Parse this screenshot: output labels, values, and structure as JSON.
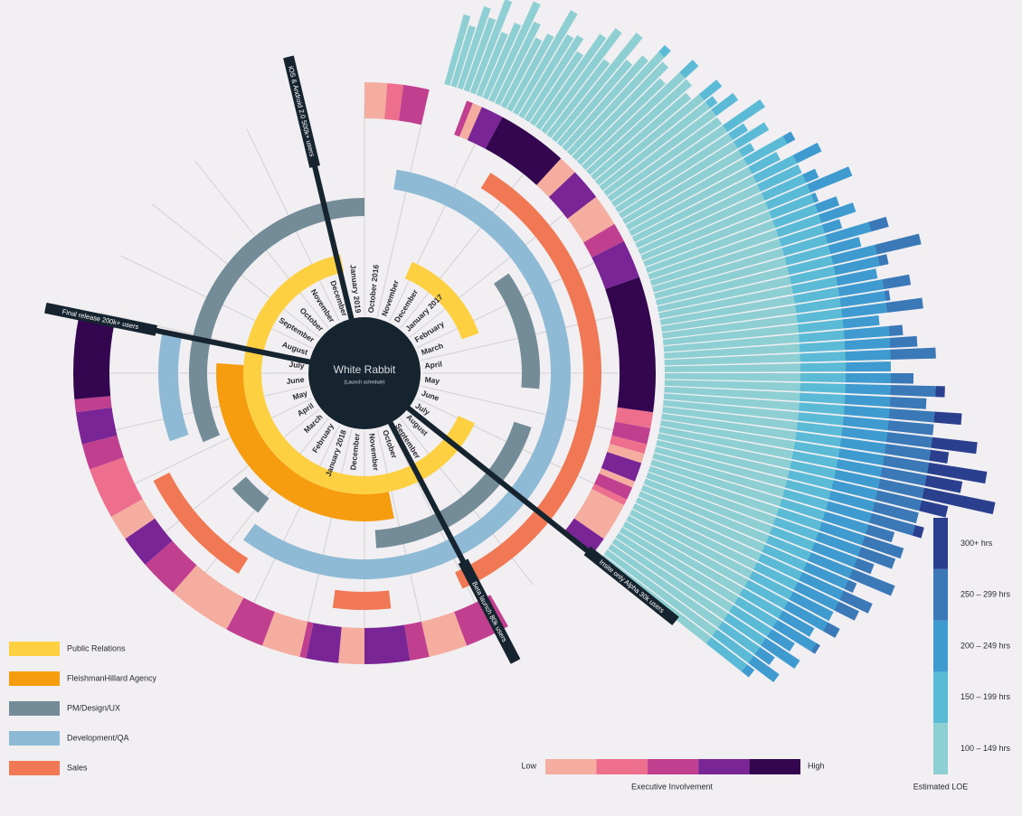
{
  "chart_data": {
    "type": "radial-timeline",
    "title": "White Rabbit",
    "subtitle": "(Launch schedule)",
    "months": [
      "October 2016",
      "November",
      "December",
      "January 2017",
      "February",
      "March",
      "April",
      "May",
      "June",
      "July",
      "August",
      "September",
      "October",
      "November",
      "December",
      "January 2018",
      "February",
      "March",
      "April",
      "May",
      "June",
      "July",
      "August",
      "September",
      "October",
      "November",
      "December",
      "January 2019"
    ],
    "tracks": [
      {
        "name": "Public Relations",
        "color": "#fdd041",
        "segments": [
          [
            1.8,
            5.5
          ],
          [
            8.9,
            27.1
          ]
        ]
      },
      {
        "name": "FleishmanHillard Agency",
        "color": "#f59d0e",
        "segments": [
          [
            13.1,
            21.3
          ]
        ]
      },
      {
        "name": "PM/Design/UX",
        "color": "#738c98",
        "segments": [
          [
            4.3,
            7.4
          ],
          [
            8.4,
            13.7
          ],
          [
            16.9,
            17.8
          ],
          [
            19.2,
            28
          ]
        ]
      },
      {
        "name": "Development/QA",
        "color": "#8fbad6",
        "segments": [
          [
            0.7,
            16.8
          ],
          [
            19.5,
            21.9
          ]
        ]
      },
      {
        "name": "Sales",
        "color": "#f07855",
        "segments": [
          [
            2.5,
            12.1
          ],
          [
            13.5,
            14.6
          ],
          [
            16.5,
            18.9
          ]
        ]
      }
    ],
    "milestones": [
      {
        "label": "iOS & Android 2.0 500k+ users",
        "month": 26.95
      },
      {
        "label": "Final release 200k+ users",
        "month": 21.9
      },
      {
        "label": "Insite only Alpha 30k users",
        "month": 10.0
      },
      {
        "label": "Beta launch 80k users",
        "month": 11.85
      }
    ],
    "executive_involvement": {
      "title": "Executive Involvement",
      "low": "Low",
      "high": "High",
      "colors": [
        "#f5ada0",
        "#ee6e8e",
        "#c0408f",
        "#7a2596",
        "#33064f"
      ],
      "segments": [
        {
          "start": 0,
          "end": 0.35,
          "level": 0
        },
        {
          "start": 0.35,
          "end": 0.6,
          "level": 1
        },
        {
          "start": 0.6,
          "end": 1.0,
          "level": 2
        },
        {
          "start": 1.6,
          "end": 1.7,
          "level": 2
        },
        {
          "start": 1.7,
          "end": 1.85,
          "level": 0
        },
        {
          "start": 1.85,
          "end": 2.2,
          "level": 3
        },
        {
          "start": 2.2,
          "end": 3.3,
          "level": 4
        },
        {
          "start": 3.3,
          "end": 3.6,
          "level": 0
        },
        {
          "start": 3.6,
          "end": 4.1,
          "level": 3
        },
        {
          "start": 4.1,
          "end": 4.6,
          "level": 0
        },
        {
          "start": 4.6,
          "end": 4.9,
          "level": 2
        },
        {
          "start": 4.9,
          "end": 5.5,
          "level": 3
        },
        {
          "start": 5.5,
          "end": 7.6,
          "level": 4
        },
        {
          "start": 7.6,
          "end": 7.85,
          "level": 1
        },
        {
          "start": 7.85,
          "end": 8.1,
          "level": 2
        },
        {
          "start": 8.1,
          "end": 8.25,
          "level": 1
        },
        {
          "start": 8.25,
          "end": 8.4,
          "level": 0
        },
        {
          "start": 8.4,
          "end": 8.7,
          "level": 3
        },
        {
          "start": 8.7,
          "end": 8.8,
          "level": 0
        },
        {
          "start": 8.8,
          "end": 9.0,
          "level": 2
        },
        {
          "start": 9.0,
          "end": 9.1,
          "level": 1
        },
        {
          "start": 9.1,
          "end": 9.7,
          "level": 0
        },
        {
          "start": 9.7,
          "end": 10.0,
          "level": 3
        },
        {
          "start": 11.7,
          "end": 12.4,
          "level": 2
        },
        {
          "start": 12.4,
          "end": 13.0,
          "level": 0
        },
        {
          "start": 13.0,
          "end": 13.3,
          "level": 2
        },
        {
          "start": 13.3,
          "end": 14.0,
          "level": 3
        },
        {
          "start": 14.0,
          "end": 14.4,
          "level": 0
        },
        {
          "start": 14.4,
          "end": 14.9,
          "level": 3
        },
        {
          "start": 14.9,
          "end": 15.0,
          "level": 2
        },
        {
          "start": 15.0,
          "end": 15.6,
          "level": 0
        },
        {
          "start": 15.6,
          "end": 16.2,
          "level": 2
        },
        {
          "start": 16.2,
          "end": 17.2,
          "level": 0
        },
        {
          "start": 17.2,
          "end": 17.8,
          "level": 2
        },
        {
          "start": 17.8,
          "end": 18.3,
          "level": 3
        },
        {
          "start": 18.3,
          "end": 18.7,
          "level": 0
        },
        {
          "start": 18.7,
          "end": 19.5,
          "level": 1
        },
        {
          "start": 19.5,
          "end": 19.9,
          "level": 2
        },
        {
          "start": 19.9,
          "end": 20.4,
          "level": 3
        },
        {
          "start": 20.4,
          "end": 20.6,
          "level": 2
        },
        {
          "start": 20.6,
          "end": 21.9,
          "level": 4
        }
      ]
    },
    "loe": {
      "title": "Estimated LOE",
      "bins": [
        {
          "label": "100 – 149 hrs",
          "color": "#8ecfd3"
        },
        {
          "label": "150 – 199 hrs",
          "color": "#5bbbd7"
        },
        {
          "label": "200 – 249 hrs",
          "color": "#3f9bcf"
        },
        {
          "label": "250 – 299 hrs",
          "color": "#3a78b7"
        },
        {
          "label": "300+ hrs",
          "color": "#2b3f8f"
        }
      ],
      "start_month": 1.2,
      "step": 0.1,
      "values": [
        80,
        70,
        95,
        85,
        110,
        75,
        90,
        120,
        100,
        85,
        95,
        130,
        105,
        110,
        95,
        125,
        140,
        105,
        150,
        120,
        135,
        160,
        145,
        130,
        170,
        150,
        140,
        175,
        160,
        180,
        150,
        200,
        170,
        190,
        165,
        210,
        185,
        230,
        200,
        215,
        250,
        205,
        225,
        240,
        220,
        270,
        235,
        300,
        260,
        245,
        280,
        255,
        290,
        240,
        265,
        280,
        300,
        250,
        275,
        310,
        290,
        330,
        300,
        350,
        320,
        365,
        340,
        380,
        330,
        300,
        310,
        280,
        295,
        290,
        270,
        300,
        260,
        285,
        275,
        250,
        265,
        240,
        255,
        230,
        245,
        220,
        235,
        210
      ]
    }
  }
}
